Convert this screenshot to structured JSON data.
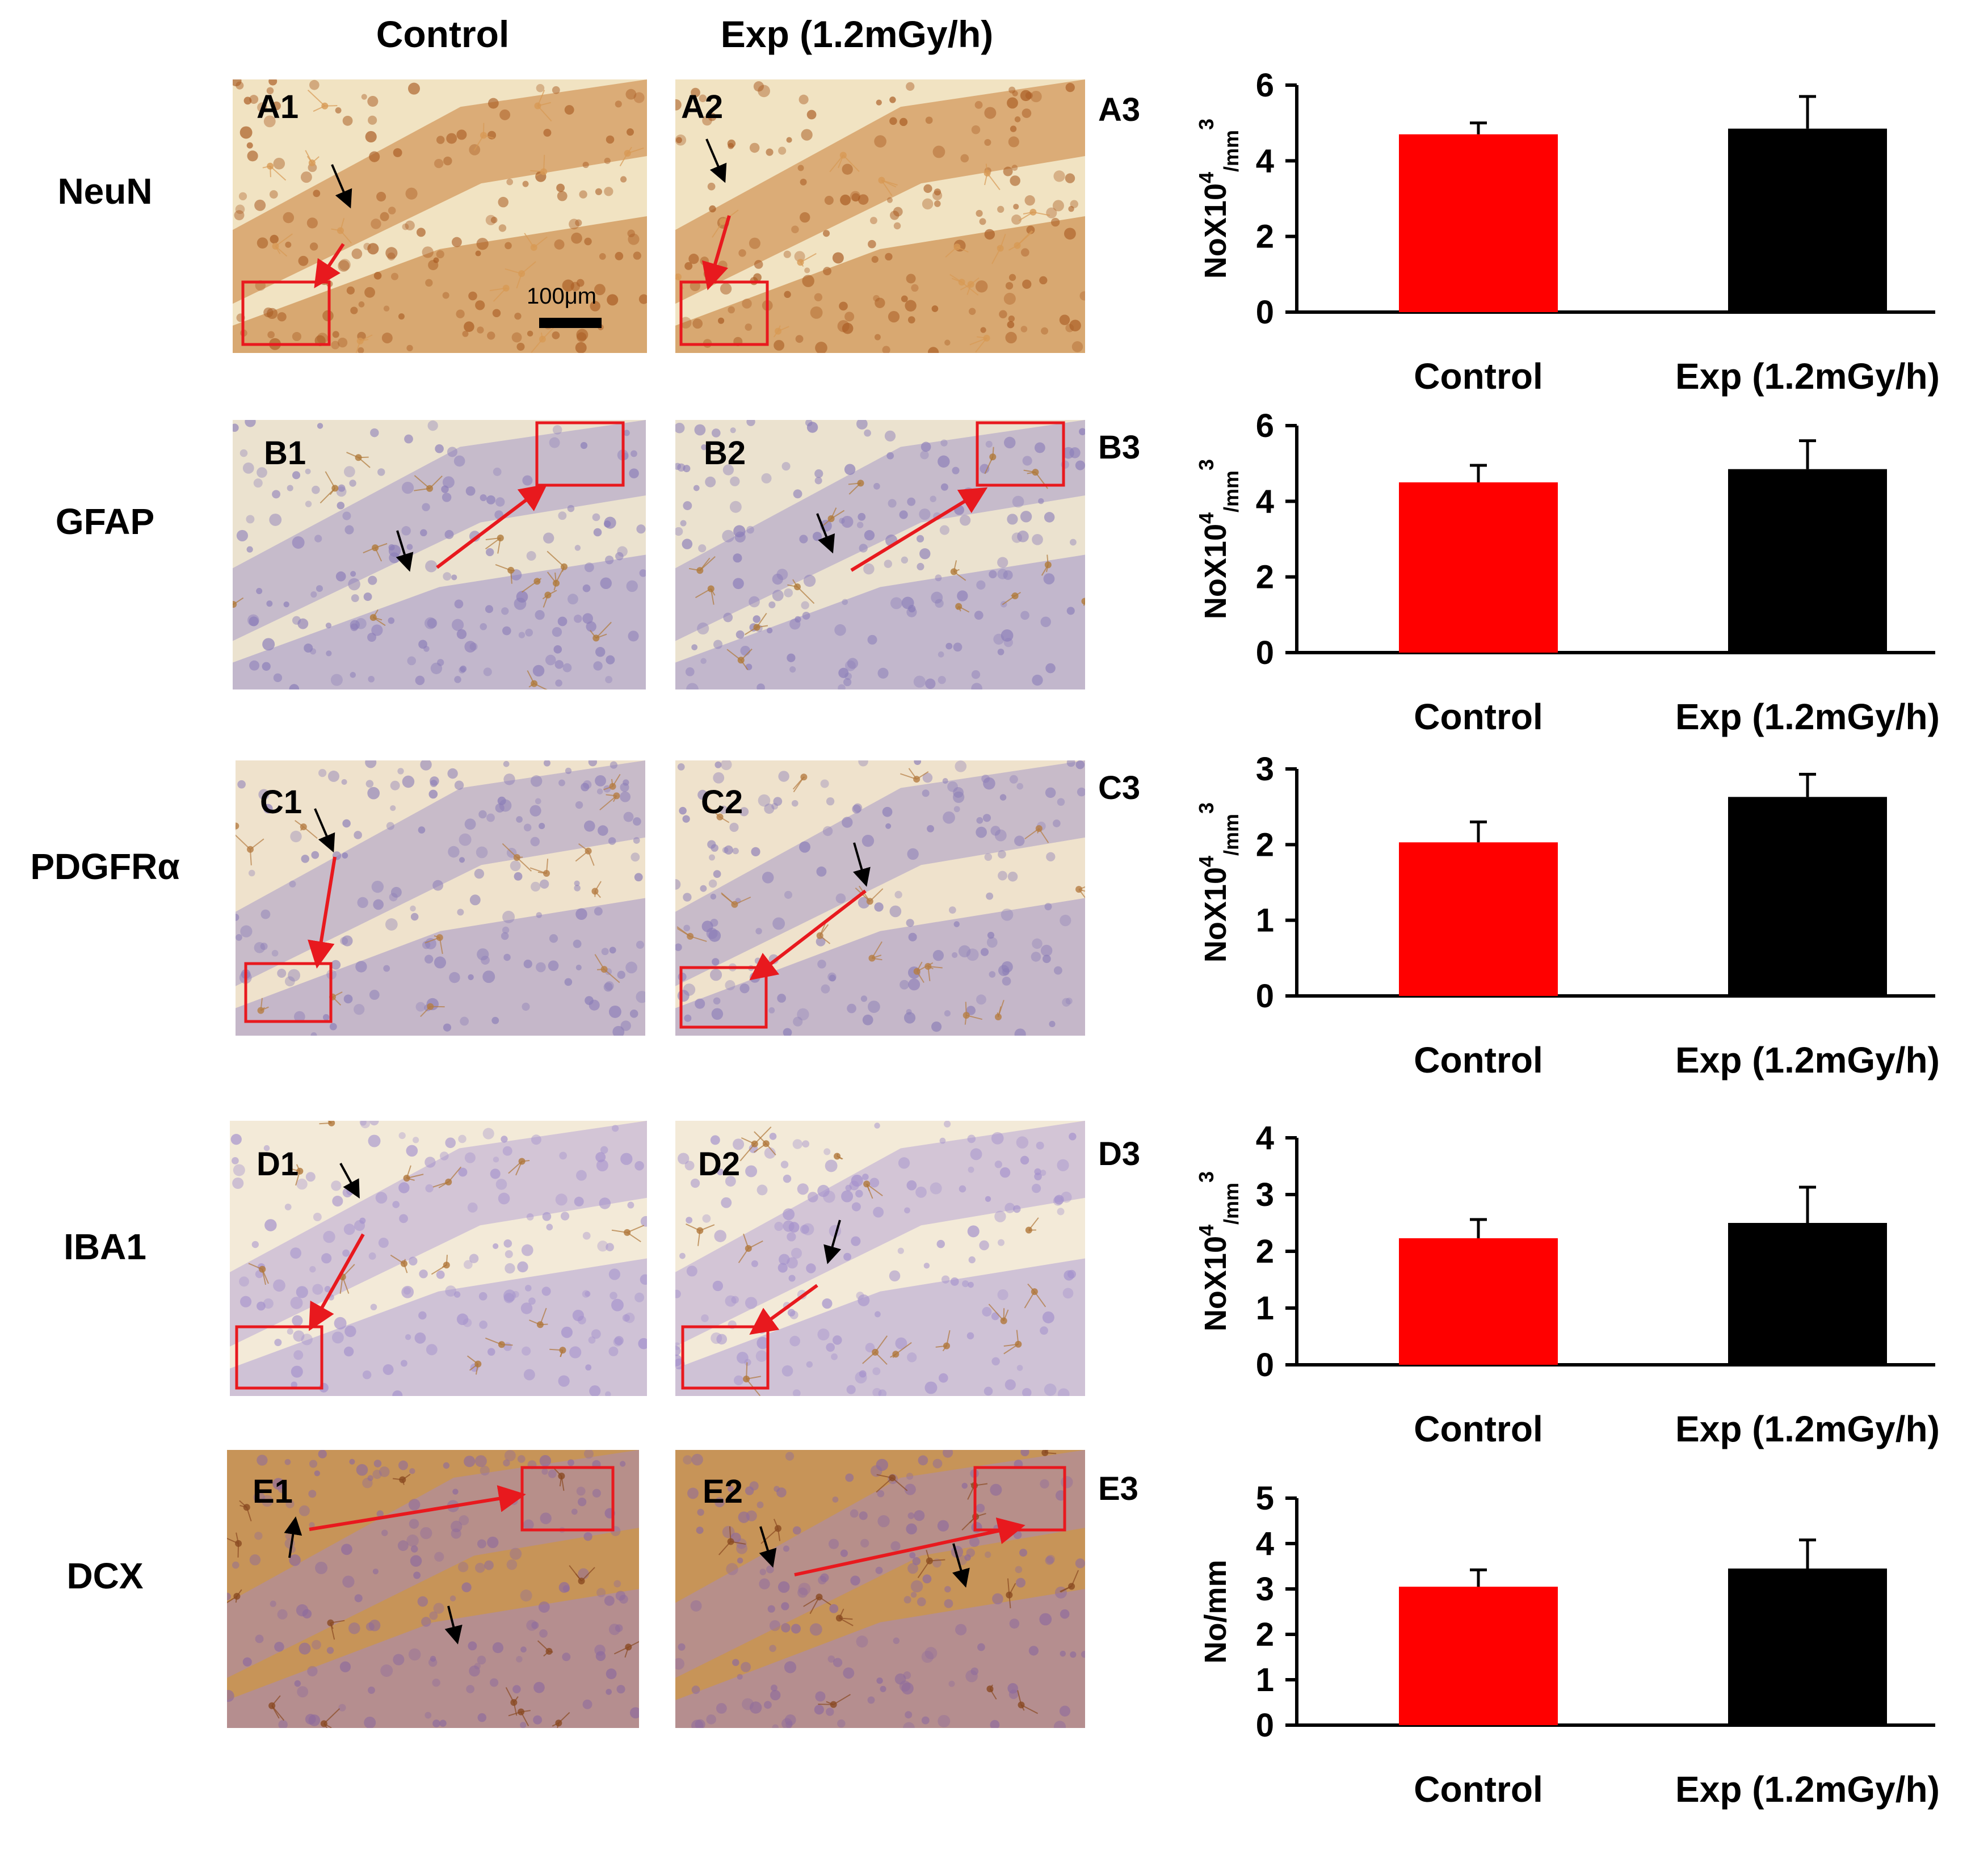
{
  "column_headers": {
    "control": "Control",
    "exp": "Exp (1.2mGy/h)"
  },
  "scale_bar": "100μm",
  "rows": [
    {
      "marker": "NeuN",
      "panels": [
        "A1",
        "A2",
        "A3"
      ]
    },
    {
      "marker": "GFAP",
      "panels": [
        "B1",
        "B2",
        "B3"
      ]
    },
    {
      "marker": "PDGFRα",
      "panels": [
        "C1",
        "C2",
        "C3"
      ]
    },
    {
      "marker": "IBA1",
      "panels": [
        "D1",
        "D2",
        "D3"
      ]
    },
    {
      "marker": "DCX",
      "panels": [
        "E1",
        "E2",
        "E3"
      ]
    }
  ],
  "colors": {
    "control": "#ff0000",
    "exp": "#000000",
    "neun_stain": "#c9863a",
    "hematoxylin": "#9a8fc4",
    "annotation": "#e8191e"
  },
  "chart_data": [
    {
      "type": "bar",
      "panel": "A3",
      "categories": [
        "Control",
        "Exp (1.2mGy/h)"
      ],
      "values": [
        4.7,
        4.85
      ],
      "errors": [
        0.3,
        0.85
      ],
      "ylabel": "NoX10",
      "ylabel_sup1": "4",
      "ylabel_mid": "/mm",
      "ylabel_sup2": "3",
      "ylim": [
        0,
        6
      ],
      "yticks": [
        "0",
        "2",
        "4",
        "6"
      ],
      "ytick_values": [
        0,
        2,
        4,
        6
      ]
    },
    {
      "type": "bar",
      "panel": "B3",
      "categories": [
        "Control",
        "Exp (1.2mGy/h)"
      ],
      "values": [
        4.5,
        4.85
      ],
      "errors": [
        0.45,
        0.75
      ],
      "ylabel": "NoX10",
      "ylabel_sup1": "4",
      "ylabel_mid": "/mm",
      "ylabel_sup2": "3",
      "ylim": [
        0,
        6
      ],
      "yticks": [
        "0",
        "2",
        "4",
        "6"
      ],
      "ytick_values": [
        0,
        2,
        4,
        6
      ]
    },
    {
      "type": "bar",
      "panel": "C3",
      "categories": [
        "Control",
        "Exp (1.2mGy/h)"
      ],
      "values": [
        2.03,
        2.63
      ],
      "errors": [
        0.27,
        0.3
      ],
      "ylabel": "NoX10",
      "ylabel_sup1": "4",
      "ylabel_mid": "/mm",
      "ylabel_sup2": "3",
      "ylim": [
        0,
        3
      ],
      "yticks": [
        "0",
        "1",
        "2",
        "3"
      ],
      "ytick_values": [
        0,
        1,
        2,
        3
      ]
    },
    {
      "type": "bar",
      "panel": "D3",
      "categories": [
        "Control",
        "Exp (1.2mGy/h)"
      ],
      "values": [
        2.23,
        2.5
      ],
      "errors": [
        0.33,
        0.63
      ],
      "ylabel": "NoX10",
      "ylabel_sup1": "4",
      "ylabel_mid": "/mm",
      "ylabel_sup2": "3",
      "ylim": [
        0,
        4
      ],
      "yticks": [
        "0",
        "1",
        "2",
        "3",
        "4"
      ],
      "ytick_values": [
        0,
        1,
        2,
        3,
        4
      ]
    },
    {
      "type": "bar",
      "panel": "E3",
      "categories": [
        "Control",
        "Exp (1.2mGy/h)"
      ],
      "values": [
        3.05,
        3.45
      ],
      "errors": [
        0.37,
        0.63
      ],
      "ylabel": "No/mm",
      "ylabel_sup1": "",
      "ylabel_mid": "",
      "ylabel_sup2": "",
      "ylim": [
        0,
        5
      ],
      "yticks": [
        "0",
        "1",
        "2",
        "3",
        "4",
        "5"
      ],
      "ytick_values": [
        0,
        1,
        2,
        3,
        4,
        5
      ]
    }
  ]
}
